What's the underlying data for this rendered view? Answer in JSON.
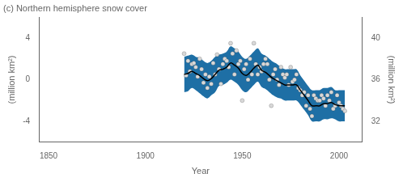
{
  "chart_data": {
    "type": "line",
    "title": "(c) Northern hemisphere snow cover",
    "xlabel": "Year",
    "ylabel": "(million km²)",
    "y2label": "(million km²)",
    "xlim": [
      1845,
      2012
    ],
    "xticks": [
      1850,
      1900,
      1950,
      2000
    ],
    "ylim": [
      -6,
      6
    ],
    "yticks": [
      -4,
      0,
      4
    ],
    "y2lim": [
      30,
      42
    ],
    "y2ticks": [
      32,
      36,
      40
    ],
    "grid": false,
    "series": [
      {
        "type": "band",
        "color": "#1e6fa5",
        "x": [
          1920,
          1922,
          1924,
          1926,
          1928,
          1930,
          1932,
          1934,
          1936,
          1938,
          1940,
          1942,
          1944,
          1946,
          1948,
          1950,
          1952,
          1954,
          1956,
          1958,
          1960,
          1962,
          1964,
          1966,
          1968,
          1970,
          1972,
          1974,
          1976,
          1978,
          1980,
          1982,
          1984,
          1986,
          1988,
          1990,
          1992,
          1994,
          1996,
          1998,
          2000,
          2002,
          2003
        ],
        "upper": [
          2.2,
          2.3,
          2.4,
          2.2,
          2.1,
          1.8,
          1.6,
          1.8,
          2.2,
          2.4,
          2.5,
          2.7,
          3.2,
          3.0,
          2.7,
          2.2,
          2.0,
          2.3,
          2.7,
          3.0,
          2.5,
          2.3,
          2.0,
          1.7,
          1.5,
          1.2,
          1.0,
          1.0,
          1.0,
          1.0,
          0.4,
          -0.1,
          -0.6,
          -1.0,
          -1.0,
          -1.0,
          -0.8,
          -0.8,
          -0.7,
          -1.0,
          -1.0,
          -1.0,
          -1.0
        ],
        "lower": [
          -1.2,
          -1.1,
          -0.8,
          -1.0,
          -1.3,
          -1.6,
          -1.8,
          -1.5,
          -1.2,
          -0.6,
          -0.5,
          -0.3,
          0.0,
          -0.2,
          -0.5,
          -1.0,
          -1.2,
          -0.9,
          -0.5,
          -0.2,
          -0.7,
          -0.9,
          -1.2,
          -1.5,
          -1.7,
          -1.8,
          -2.0,
          -2.0,
          -2.0,
          -2.0,
          -2.4,
          -2.9,
          -3.4,
          -4.0,
          -4.0,
          -4.0,
          -3.8,
          -3.8,
          -3.7,
          -3.8,
          -4.0,
          -4.0,
          -4.0
        ]
      },
      {
        "type": "scatter",
        "color": "#d8d8d8",
        "x": [
          1920,
          1921,
          1922,
          1923,
          1924,
          1925,
          1926,
          1927,
          1928,
          1929,
          1930,
          1931,
          1932,
          1933,
          1934,
          1935,
          1936,
          1937,
          1938,
          1939,
          1940,
          1941,
          1942,
          1943,
          1944,
          1945,
          1946,
          1947,
          1948,
          1949,
          1950,
          1951,
          1952,
          1953,
          1954,
          1955,
          1956,
          1957,
          1958,
          1959,
          1960,
          1961,
          1962,
          1963,
          1964,
          1965,
          1966,
          1967,
          1968,
          1969,
          1970,
          1971,
          1972,
          1973,
          1974,
          1975,
          1976,
          1977,
          1978,
          1979,
          1980,
          1981,
          1982,
          1983,
          1984,
          1985,
          1986,
          1987,
          1988,
          1989,
          1990,
          1991,
          1992,
          1993,
          1994,
          1995,
          1996,
          1997,
          1998,
          1999,
          2000,
          2001,
          2002,
          2003
        ],
        "values": [
          2.5,
          0.4,
          1.8,
          0.8,
          1.5,
          1.6,
          1.2,
          0.3,
          2.0,
          1.0,
          -0.3,
          0.5,
          -0.8,
          0.3,
          -0.4,
          1.6,
          0.5,
          2.4,
          1.0,
          -0.4,
          1.5,
          2.0,
          1.8,
          1.2,
          3.5,
          2.5,
          0.5,
          2.8,
          1.5,
          1.8,
          -2.0,
          1.0,
          1.5,
          0.0,
          2.0,
          0.5,
          3.5,
          1.5,
          0.5,
          1.2,
          0.8,
          1.5,
          2.0,
          1.5,
          0.0,
          -2.5,
          0.5,
          1.0,
          0.0,
          -0.5,
          1.2,
          0.5,
          0.2,
          0.5,
          -0.5,
          1.2,
          -0.2,
          0.0,
          0.5,
          -0.8,
          -1.0,
          -1.5,
          -1.2,
          -2.5,
          -1.5,
          -2.8,
          -3.5,
          -1.5,
          -1.8,
          -2.0,
          -2.0,
          -1.5,
          -1.8,
          -2.5,
          -1.5,
          -2.0,
          -1.2,
          -2.8,
          -2.5,
          -1.5,
          -2.2,
          -2.5,
          -2.8,
          -3.0
        ]
      },
      {
        "type": "line",
        "color": "#000000",
        "x": [
          1920,
          1922,
          1924,
          1926,
          1928,
          1930,
          1932,
          1934,
          1936,
          1938,
          1940,
          1942,
          1944,
          1946,
          1948,
          1950,
          1952,
          1954,
          1956,
          1958,
          1960,
          1962,
          1964,
          1966,
          1968,
          1970,
          1972,
          1974,
          1976,
          1978,
          1980,
          1982,
          1984,
          1986,
          1988,
          1990,
          1992,
          1994,
          1996,
          1998,
          2000,
          2002,
          2003
        ],
        "values": [
          0.5,
          0.6,
          0.8,
          0.6,
          0.4,
          0.1,
          -0.1,
          0.1,
          0.5,
          0.9,
          1.0,
          1.2,
          1.6,
          1.4,
          1.1,
          0.6,
          0.4,
          0.7,
          1.1,
          1.4,
          0.9,
          0.7,
          0.4,
          0.1,
          -0.1,
          -0.3,
          -0.5,
          -0.5,
          -0.5,
          -0.5,
          -1.0,
          -1.5,
          -2.0,
          -2.5,
          -2.5,
          -2.5,
          -2.3,
          -2.3,
          -2.2,
          -2.4,
          -2.5,
          -2.5,
          -2.5
        ]
      }
    ]
  }
}
